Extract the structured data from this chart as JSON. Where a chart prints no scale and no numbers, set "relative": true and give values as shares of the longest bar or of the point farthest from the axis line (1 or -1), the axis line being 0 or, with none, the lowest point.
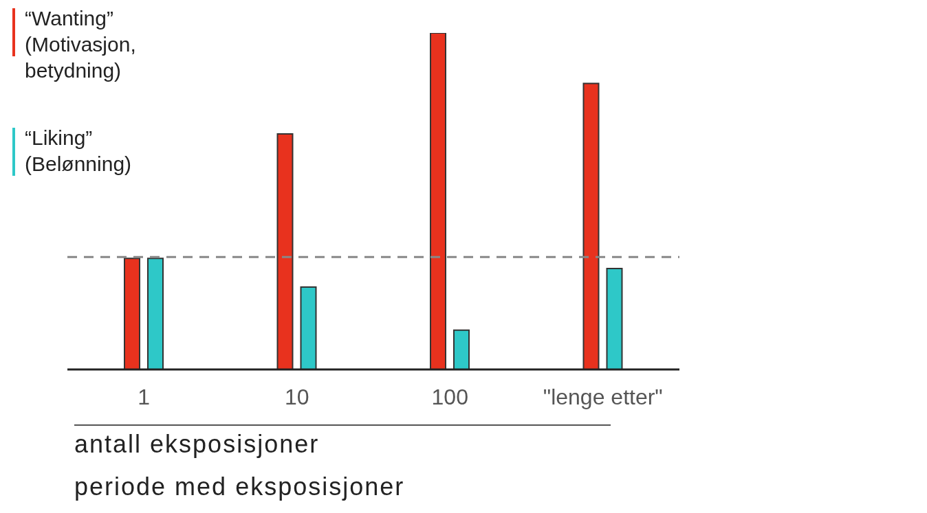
{
  "chart_data": {
    "type": "bar",
    "relative": true,
    "categories": [
      "1",
      "10",
      "100",
      "\"lenge etter\""
    ],
    "series": [
      {
        "name": "“Wanting”\n(Motivasjon,\nbetydning)",
        "color": "#e8321e",
        "values": [
          0.33,
          0.7,
          1,
          0.85
        ]
      },
      {
        "name": "“Liking”\n(Belønning)",
        "color": "#2ec8c8",
        "values": [
          0.33,
          0.245,
          0.117,
          0.3
        ]
      }
    ],
    "ref_lines": [
      {
        "axis": "y",
        "value": 0.334,
        "color": "#888888",
        "line_style": "dashed"
      }
    ],
    "xlabel": "antall eksposisjoner",
    "annotations": [
      "periode med eksposisjoner"
    ],
    "legend": "top left"
  }
}
